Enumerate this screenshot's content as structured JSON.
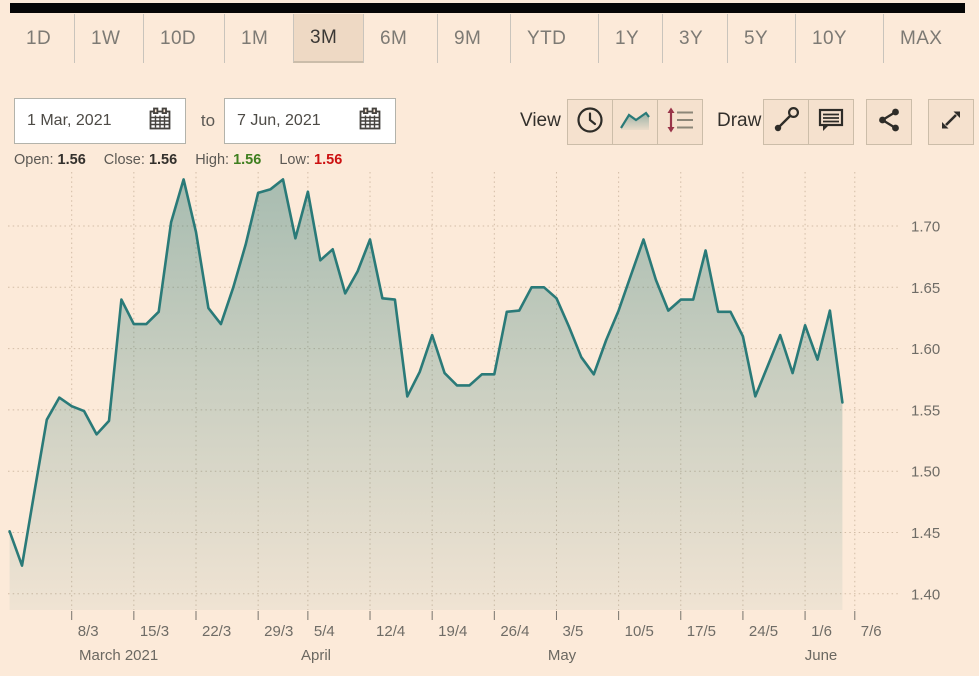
{
  "tabs": {
    "items": [
      "1D",
      "1W",
      "10D",
      "1M",
      "3M",
      "6M",
      "9M",
      "YTD",
      "1Y",
      "3Y",
      "5Y",
      "10Y",
      "MAX"
    ],
    "selected": "3M"
  },
  "controls": {
    "from_date": "1 Mar, 2021",
    "to_label": "to",
    "to_date": "7 Jun, 2021",
    "view_label": "View",
    "draw_label": "Draw"
  },
  "ohlc": {
    "open_label": "Open:",
    "open": "1.56",
    "close_label": "Close:",
    "close": "1.56",
    "high_label": "High:",
    "high": "1.56",
    "low_label": "Low:",
    "low": "1.56"
  },
  "colors": {
    "background": "#fcead9",
    "line": "#2a7a78",
    "fill": "rgba(42,120,116,0.40)",
    "high": "#3f7f1f",
    "low": "#cc1111",
    "selected_tab_bg": "#eed9c4",
    "grid": "#d2bca6"
  },
  "icons": [
    "calendar-icon",
    "clock-icon",
    "line-chart-icon",
    "hilo-list-icon",
    "trendline-icon",
    "annotation-icon",
    "share-icon",
    "fullscreen-icon"
  ],
  "chart_data": {
    "type": "area",
    "title": "",
    "xlabel": "",
    "ylabel": "",
    "ylim": [
      1.395,
      1.755
    ],
    "grid": "dotted",
    "legend": "none",
    "x": [
      "1 Mar",
      "2 Mar",
      "3 Mar",
      "4 Mar",
      "5 Mar",
      "8 Mar",
      "9 Mar",
      "10 Mar",
      "11 Mar",
      "12 Mar",
      "15 Mar",
      "16 Mar",
      "17 Mar",
      "18 Mar",
      "19 Mar",
      "22 Mar",
      "23 Mar",
      "24 Mar",
      "25 Mar",
      "26 Mar",
      "29 Mar",
      "30 Mar",
      "31 Mar",
      "1 Apr",
      "5 Apr",
      "6 Apr",
      "7 Apr",
      "8 Apr",
      "9 Apr",
      "12 Apr",
      "13 Apr",
      "14 Apr",
      "15 Apr",
      "16 Apr",
      "19 Apr",
      "20 Apr",
      "21 Apr",
      "22 Apr",
      "23 Apr",
      "26 Apr",
      "27 Apr",
      "28 Apr",
      "29 Apr",
      "30 Apr",
      "3 May",
      "4 May",
      "5 May",
      "6 May",
      "7 May",
      "10 May",
      "11 May",
      "12 May",
      "13 May",
      "14 May",
      "17 May",
      "18 May",
      "19 May",
      "20 May",
      "21 May",
      "24 May",
      "25 May",
      "26 May",
      "27 May",
      "28 May",
      "1 Jun",
      "2 Jun",
      "3 Jun",
      "4 Jun"
    ],
    "values": [
      1.451,
      1.423,
      1.483,
      1.542,
      1.56,
      1.553,
      1.549,
      1.53,
      1.541,
      1.64,
      1.62,
      1.62,
      1.63,
      1.703,
      1.738,
      1.695,
      1.633,
      1.62,
      1.65,
      1.685,
      1.727,
      1.73,
      1.738,
      1.69,
      1.728,
      1.672,
      1.681,
      1.645,
      1.663,
      1.689,
      1.641,
      1.64,
      1.561,
      1.581,
      1.611,
      1.58,
      1.57,
      1.57,
      1.579,
      1.579,
      1.63,
      1.631,
      1.65,
      1.65,
      1.641,
      1.618,
      1.593,
      1.579,
      1.607,
      1.631,
      1.66,
      1.689,
      1.656,
      1.631,
      1.64,
      1.64,
      1.68,
      1.63,
      1.63,
      1.61,
      1.561,
      1.586,
      1.611,
      1.58,
      1.619,
      1.591,
      1.631,
      1.556
    ],
    "y_ticks": [
      1.7,
      1.65,
      1.6,
      1.55,
      1.5,
      1.45,
      1.4
    ],
    "x_ticks": [
      {
        "label": "8/3",
        "i": 5
      },
      {
        "label": "15/3",
        "i": 10
      },
      {
        "label": "22/3",
        "i": 15
      },
      {
        "label": "29/3",
        "i": 20
      },
      {
        "label": "5/4",
        "i": 24
      },
      {
        "label": "12/4",
        "i": 29
      },
      {
        "label": "19/4",
        "i": 34
      },
      {
        "label": "26/4",
        "i": 39
      },
      {
        "label": "3/5",
        "i": 44
      },
      {
        "label": "10/5",
        "i": 49
      },
      {
        "label": "17/5",
        "i": 54
      },
      {
        "label": "24/5",
        "i": 59
      },
      {
        "label": "1/6",
        "i": 64
      },
      {
        "label": "7/6",
        "i": 68
      }
    ],
    "month_labels": [
      {
        "label": "March 2021",
        "x": 79,
        "align": "start"
      },
      {
        "label": "April",
        "x": 316,
        "align": "middle"
      },
      {
        "label": "May",
        "x": 562,
        "align": "middle"
      },
      {
        "label": "June",
        "x": 821,
        "align": "middle"
      }
    ]
  }
}
